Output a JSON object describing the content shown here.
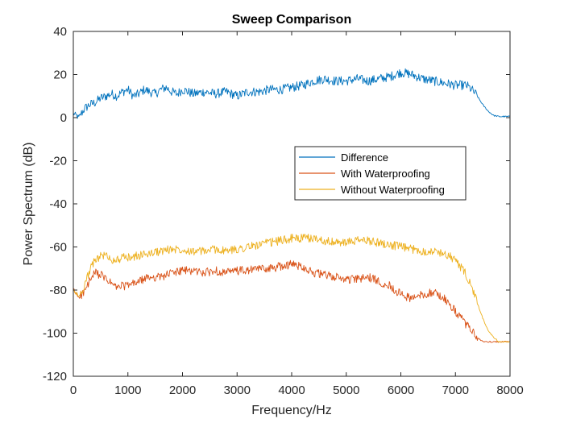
{
  "chart_data": {
    "type": "line",
    "title": "Sweep Comparison",
    "xlabel": "Frequency/Hz",
    "ylabel": "Power Spectrum (dB)",
    "xlim": [
      0,
      8000
    ],
    "ylim": [
      -120,
      40
    ],
    "xticks": [
      0,
      1000,
      2000,
      3000,
      4000,
      5000,
      6000,
      7000,
      8000
    ],
    "yticks": [
      -120,
      -100,
      -80,
      -60,
      -40,
      -20,
      0,
      20,
      40
    ],
    "grid": false,
    "legend_position": "center-right",
    "series": [
      {
        "name": "Difference",
        "color": "#0072BD",
        "x": [
          0,
          100,
          200,
          300,
          400,
          500,
          600,
          700,
          800,
          900,
          1000,
          1100,
          1200,
          1300,
          1400,
          1500,
          1600,
          1700,
          1800,
          1900,
          2000,
          2200,
          2400,
          2600,
          2800,
          3000,
          3200,
          3400,
          3600,
          3800,
          4000,
          4200,
          4400,
          4600,
          4800,
          5000,
          5200,
          5400,
          5600,
          5800,
          6000,
          6200,
          6400,
          6600,
          6800,
          7000,
          7200,
          7300,
          7400,
          7500,
          7600,
          7700,
          7800,
          8000
        ],
        "y": [
          2,
          0,
          4,
          6,
          7,
          9,
          10,
          11,
          10,
          12,
          13,
          10,
          11,
          13,
          12,
          11,
          13,
          14,
          12,
          11,
          13,
          11,
          12,
          11,
          12,
          10,
          12,
          12,
          13,
          13,
          14,
          15,
          17,
          18,
          17,
          17,
          18,
          17,
          18,
          19,
          21,
          20,
          18,
          17,
          16,
          15,
          15,
          13,
          10,
          6,
          3,
          1,
          0.5,
          0.5
        ]
      },
      {
        "name": "With Waterproofing",
        "color": "#D95319",
        "x": [
          0,
          100,
          200,
          300,
          400,
          500,
          600,
          700,
          800,
          900,
          1000,
          1200,
          1400,
          1600,
          1800,
          2000,
          2200,
          2400,
          2600,
          2800,
          3000,
          3200,
          3400,
          3600,
          3800,
          4000,
          4200,
          4400,
          4600,
          4800,
          5000,
          5200,
          5400,
          5600,
          5800,
          6000,
          6200,
          6400,
          6600,
          6800,
          7000,
          7200,
          7400,
          7500,
          7600,
          7800,
          8000
        ],
        "y": [
          -80,
          -83,
          -81,
          -76,
          -72,
          -73,
          -75,
          -77,
          -79,
          -78,
          -78,
          -76,
          -74,
          -74,
          -72,
          -71,
          -71,
          -72,
          -71,
          -72,
          -71,
          -71,
          -70,
          -70,
          -69,
          -68,
          -69,
          -72,
          -73,
          -74,
          -75,
          -75,
          -74,
          -76,
          -78,
          -82,
          -84,
          -82,
          -81,
          -84,
          -90,
          -96,
          -102,
          -104,
          -104,
          -104,
          -104
        ]
      },
      {
        "name": "Without Waterproofing",
        "color": "#EDB120",
        "x": [
          0,
          100,
          200,
          300,
          400,
          500,
          600,
          700,
          800,
          900,
          1000,
          1200,
          1400,
          1600,
          1800,
          2000,
          2200,
          2400,
          2600,
          2800,
          3000,
          3200,
          3400,
          3600,
          3800,
          4000,
          4200,
          4400,
          4600,
          4800,
          5000,
          5200,
          5400,
          5600,
          5800,
          6000,
          6200,
          6400,
          6600,
          6800,
          7000,
          7200,
          7300,
          7400,
          7500,
          7600,
          7700,
          7800,
          8000
        ],
        "y": [
          -80,
          -83,
          -78,
          -71,
          -66,
          -64,
          -64,
          -66,
          -66,
          -65,
          -65,
          -64,
          -63,
          -62,
          -61,
          -61,
          -62,
          -62,
          -61,
          -62,
          -61,
          -60,
          -59,
          -58,
          -57,
          -56,
          -56,
          -56,
          -57,
          -58,
          -58,
          -57,
          -57,
          -58,
          -59,
          -60,
          -61,
          -62,
          -62,
          -63,
          -66,
          -73,
          -79,
          -86,
          -93,
          -99,
          -102,
          -104,
          -104
        ]
      }
    ]
  }
}
